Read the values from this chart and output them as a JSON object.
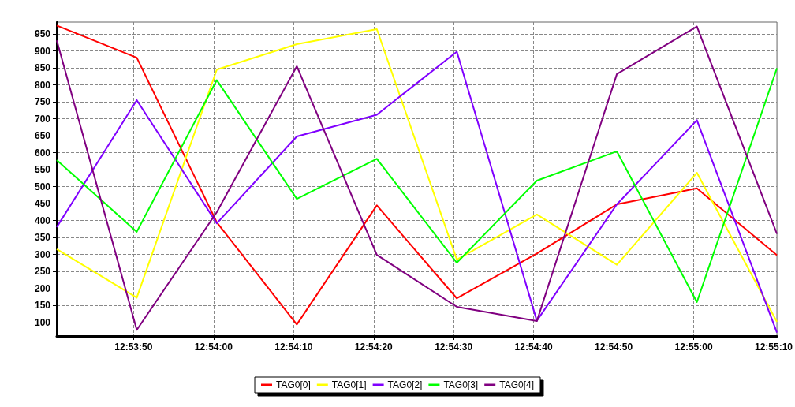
{
  "chart_data": {
    "type": "line",
    "x": [
      12.894556,
      12.897333,
      12.900111,
      12.902889,
      12.905667,
      12.908444,
      12.911222,
      12.914,
      12.916778,
      12.919556
    ],
    "xlim": [
      12.894556,
      12.919556
    ],
    "xticks": [
      {
        "value": 12.897222,
        "label": "12:53:50"
      },
      {
        "value": 12.9,
        "label": "12:54:00"
      },
      {
        "value": 12.902778,
        "label": "12:54:10"
      },
      {
        "value": 12.905556,
        "label": "12:54:20"
      },
      {
        "value": 12.908333,
        "label": "12:54:30"
      },
      {
        "value": 12.911111,
        "label": "12:54:40"
      },
      {
        "value": 12.913889,
        "label": "12:54:50"
      },
      {
        "value": 12.916667,
        "label": "12:55:00"
      },
      {
        "value": 12.919444,
        "label": "12:55:10"
      }
    ],
    "ylim": [
      60,
      985
    ],
    "yticks": [
      100,
      150,
      200,
      250,
      300,
      350,
      400,
      450,
      500,
      550,
      600,
      650,
      700,
      750,
      800,
      850,
      900,
      950
    ],
    "series": [
      {
        "name": "TAG0[0]",
        "color": "#ff0000",
        "values": [
          975,
          880,
          395,
          94,
          445,
          171,
          303,
          448,
          495,
          298
        ]
      },
      {
        "name": "TAG0[1]",
        "color": "#ffff00",
        "values": [
          316,
          173,
          845,
          920,
          964,
          285,
          418,
          270,
          541,
          102
        ]
      },
      {
        "name": "TAG0[2]",
        "color": "#8000ff",
        "values": [
          381,
          755,
          392,
          648,
          712,
          898,
          105,
          448,
          696,
          70
        ]
      },
      {
        "name": "TAG0[3]",
        "color": "#00ff00",
        "values": [
          578,
          367,
          814,
          464,
          582,
          276,
          518,
          604,
          160,
          849
        ]
      },
      {
        "name": "TAG0[4]",
        "color": "#800080",
        "values": [
          931,
          78,
          425,
          855,
          299,
          146,
          104,
          832,
          972,
          361
        ]
      }
    ],
    "grid": true,
    "legend": "bottom",
    "marker": "none",
    "line_style": "solid"
  }
}
